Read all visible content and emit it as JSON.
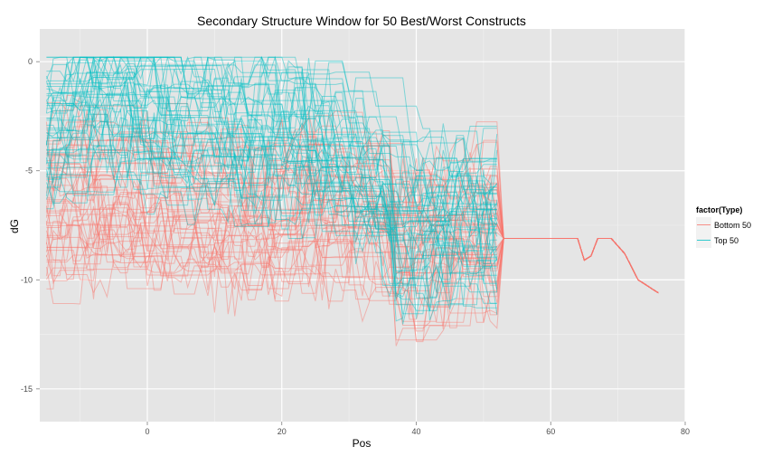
{
  "chart_data": {
    "type": "line",
    "title": "Secondary Structure Window for 50 Best/Worst Constructs",
    "xlabel": "Pos",
    "ylabel": "dG",
    "xlim": [
      -16,
      80
    ],
    "ylim": [
      -16.5,
      1.5
    ],
    "x_ticks": [
      0,
      20,
      40,
      60,
      80
    ],
    "x_tick_labels": [
      "0",
      "20",
      "40",
      "60",
      "80"
    ],
    "y_ticks": [
      0,
      -5,
      -10,
      -15
    ],
    "y_tick_labels": [
      "0",
      "-5",
      "-10",
      "-15"
    ],
    "grid": true,
    "legend": {
      "title": "factor(Type)",
      "position": "right",
      "entries": [
        {
          "label": "Bottom 50",
          "color": "#F8766D"
        },
        {
          "label": "Top 50",
          "color": "#00BFC4"
        }
      ]
    },
    "series": [
      {
        "name": "Bottom 50",
        "color": "#F8766D",
        "line_count": 50,
        "x_start": -15,
        "x_end": 76,
        "mean_profile": {
          "x": [
            -15,
            -10,
            0,
            10,
            20,
            25,
            30,
            35,
            37,
            40,
            45,
            50,
            53,
            60,
            64,
            65,
            66,
            67,
            69,
            71,
            73,
            76
          ],
          "y": [
            -6.5,
            -6.3,
            -6.8,
            -7.0,
            -7.0,
            -6.5,
            -7.0,
            -7.5,
            -9.0,
            -8.5,
            -8.0,
            -7.5,
            -8.1,
            -8.1,
            -8.1,
            -9.1,
            -8.9,
            -8.1,
            -8.1,
            -8.8,
            -10.0,
            -10.6
          ]
        }
      },
      {
        "name": "Top 50",
        "color": "#00BFC4",
        "line_count": 50,
        "x_start": -15,
        "x_end": 52,
        "mean_profile": {
          "x": [
            -15,
            -10,
            -5,
            0,
            10,
            20,
            25,
            30,
            35,
            37,
            40,
            45,
            50,
            52
          ],
          "y": [
            -3.0,
            -1.5,
            -1.5,
            -2.5,
            -3.0,
            -3.5,
            -4.0,
            -5.0,
            -6.0,
            -8.0,
            -7.5,
            -7.0,
            -7.0,
            -7.5
          ]
        }
      }
    ]
  }
}
